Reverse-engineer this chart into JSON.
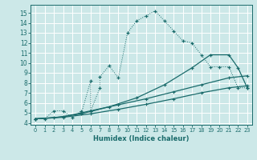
{
  "title": "",
  "xlabel": "Humidex (Indice chaleur)",
  "bg_color": "#cce8e8",
  "grid_color": "#ffffff",
  "line_color": "#1a6b6b",
  "xlim": [
    -0.5,
    23.5
  ],
  "ylim": [
    3.8,
    15.8
  ],
  "xticks": [
    0,
    1,
    2,
    3,
    4,
    5,
    6,
    7,
    8,
    9,
    10,
    11,
    12,
    13,
    14,
    15,
    16,
    17,
    18,
    19,
    20,
    21,
    22,
    23
  ],
  "yticks": [
    4,
    5,
    6,
    7,
    8,
    9,
    10,
    11,
    12,
    13,
    14,
    15
  ],
  "curve1_x": [
    0,
    1,
    2,
    3,
    4,
    5,
    5,
    6,
    6,
    7,
    7,
    8,
    9,
    10,
    11,
    12,
    13,
    14,
    15,
    16,
    17,
    18,
    19,
    20,
    21,
    22,
    23
  ],
  "curve1_y": [
    4.4,
    4.4,
    5.2,
    5.2,
    4.5,
    5.2,
    5.0,
    8.2,
    5.2,
    7.5,
    8.6,
    9.7,
    8.5,
    13.0,
    14.2,
    14.7,
    15.2,
    14.2,
    13.2,
    12.2,
    12.0,
    10.8,
    9.6,
    9.6,
    9.6,
    7.5,
    7.5
  ],
  "curve2_x": [
    0,
    2,
    5,
    8,
    11,
    14,
    17,
    19,
    21,
    22,
    23
  ],
  "curve2_y": [
    4.4,
    4.5,
    4.9,
    5.6,
    6.5,
    7.8,
    9.5,
    10.8,
    10.8,
    9.5,
    7.5
  ],
  "curve3_x": [
    0,
    3,
    6,
    9,
    12,
    15,
    18,
    21,
    23
  ],
  "curve3_y": [
    4.4,
    4.6,
    5.2,
    5.8,
    6.4,
    7.1,
    7.8,
    8.5,
    8.7
  ],
  "curve4_x": [
    0,
    3,
    6,
    9,
    12,
    15,
    18,
    21,
    23
  ],
  "curve4_y": [
    4.4,
    4.55,
    4.9,
    5.35,
    5.85,
    6.4,
    7.0,
    7.5,
    7.7
  ]
}
